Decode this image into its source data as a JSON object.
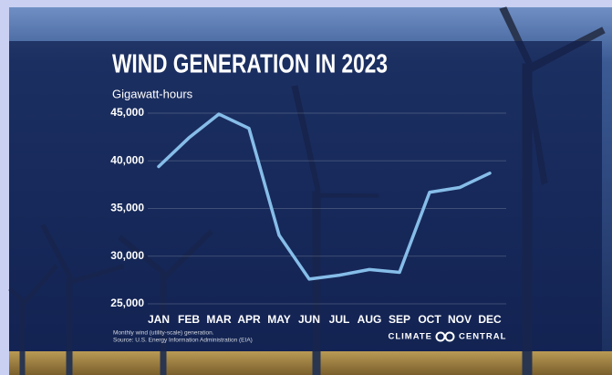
{
  "chart_data": {
    "type": "line",
    "title": "WIND GENERATION IN 2023",
    "y_label": "Gigawatt-hours",
    "categories": [
      "JAN",
      "FEB",
      "MAR",
      "APR",
      "MAY",
      "JUN",
      "JUL",
      "AUG",
      "SEP",
      "OCT",
      "NOV",
      "DEC"
    ],
    "values": [
      39400,
      42400,
      44900,
      43400,
      32200,
      27600,
      28000,
      28600,
      28300,
      36700,
      37200,
      38700
    ],
    "color": "#86bde9",
    "ylim": [
      25000,
      45000
    ],
    "yticks": [
      {
        "value": 25000,
        "label": "25,000"
      },
      {
        "value": 30000,
        "label": "30,000"
      },
      {
        "value": 35000,
        "label": "35,000"
      },
      {
        "value": 40000,
        "label": "40,000"
      },
      {
        "value": 45000,
        "label": "45,000"
      }
    ],
    "grid": true,
    "footnote": [
      "Monthly wind (utility-scale) generation.",
      "Source: U.S. Energy Information Administration (EIA)"
    ],
    "brand": [
      "CLIMATE",
      "CENTRAL"
    ]
  }
}
